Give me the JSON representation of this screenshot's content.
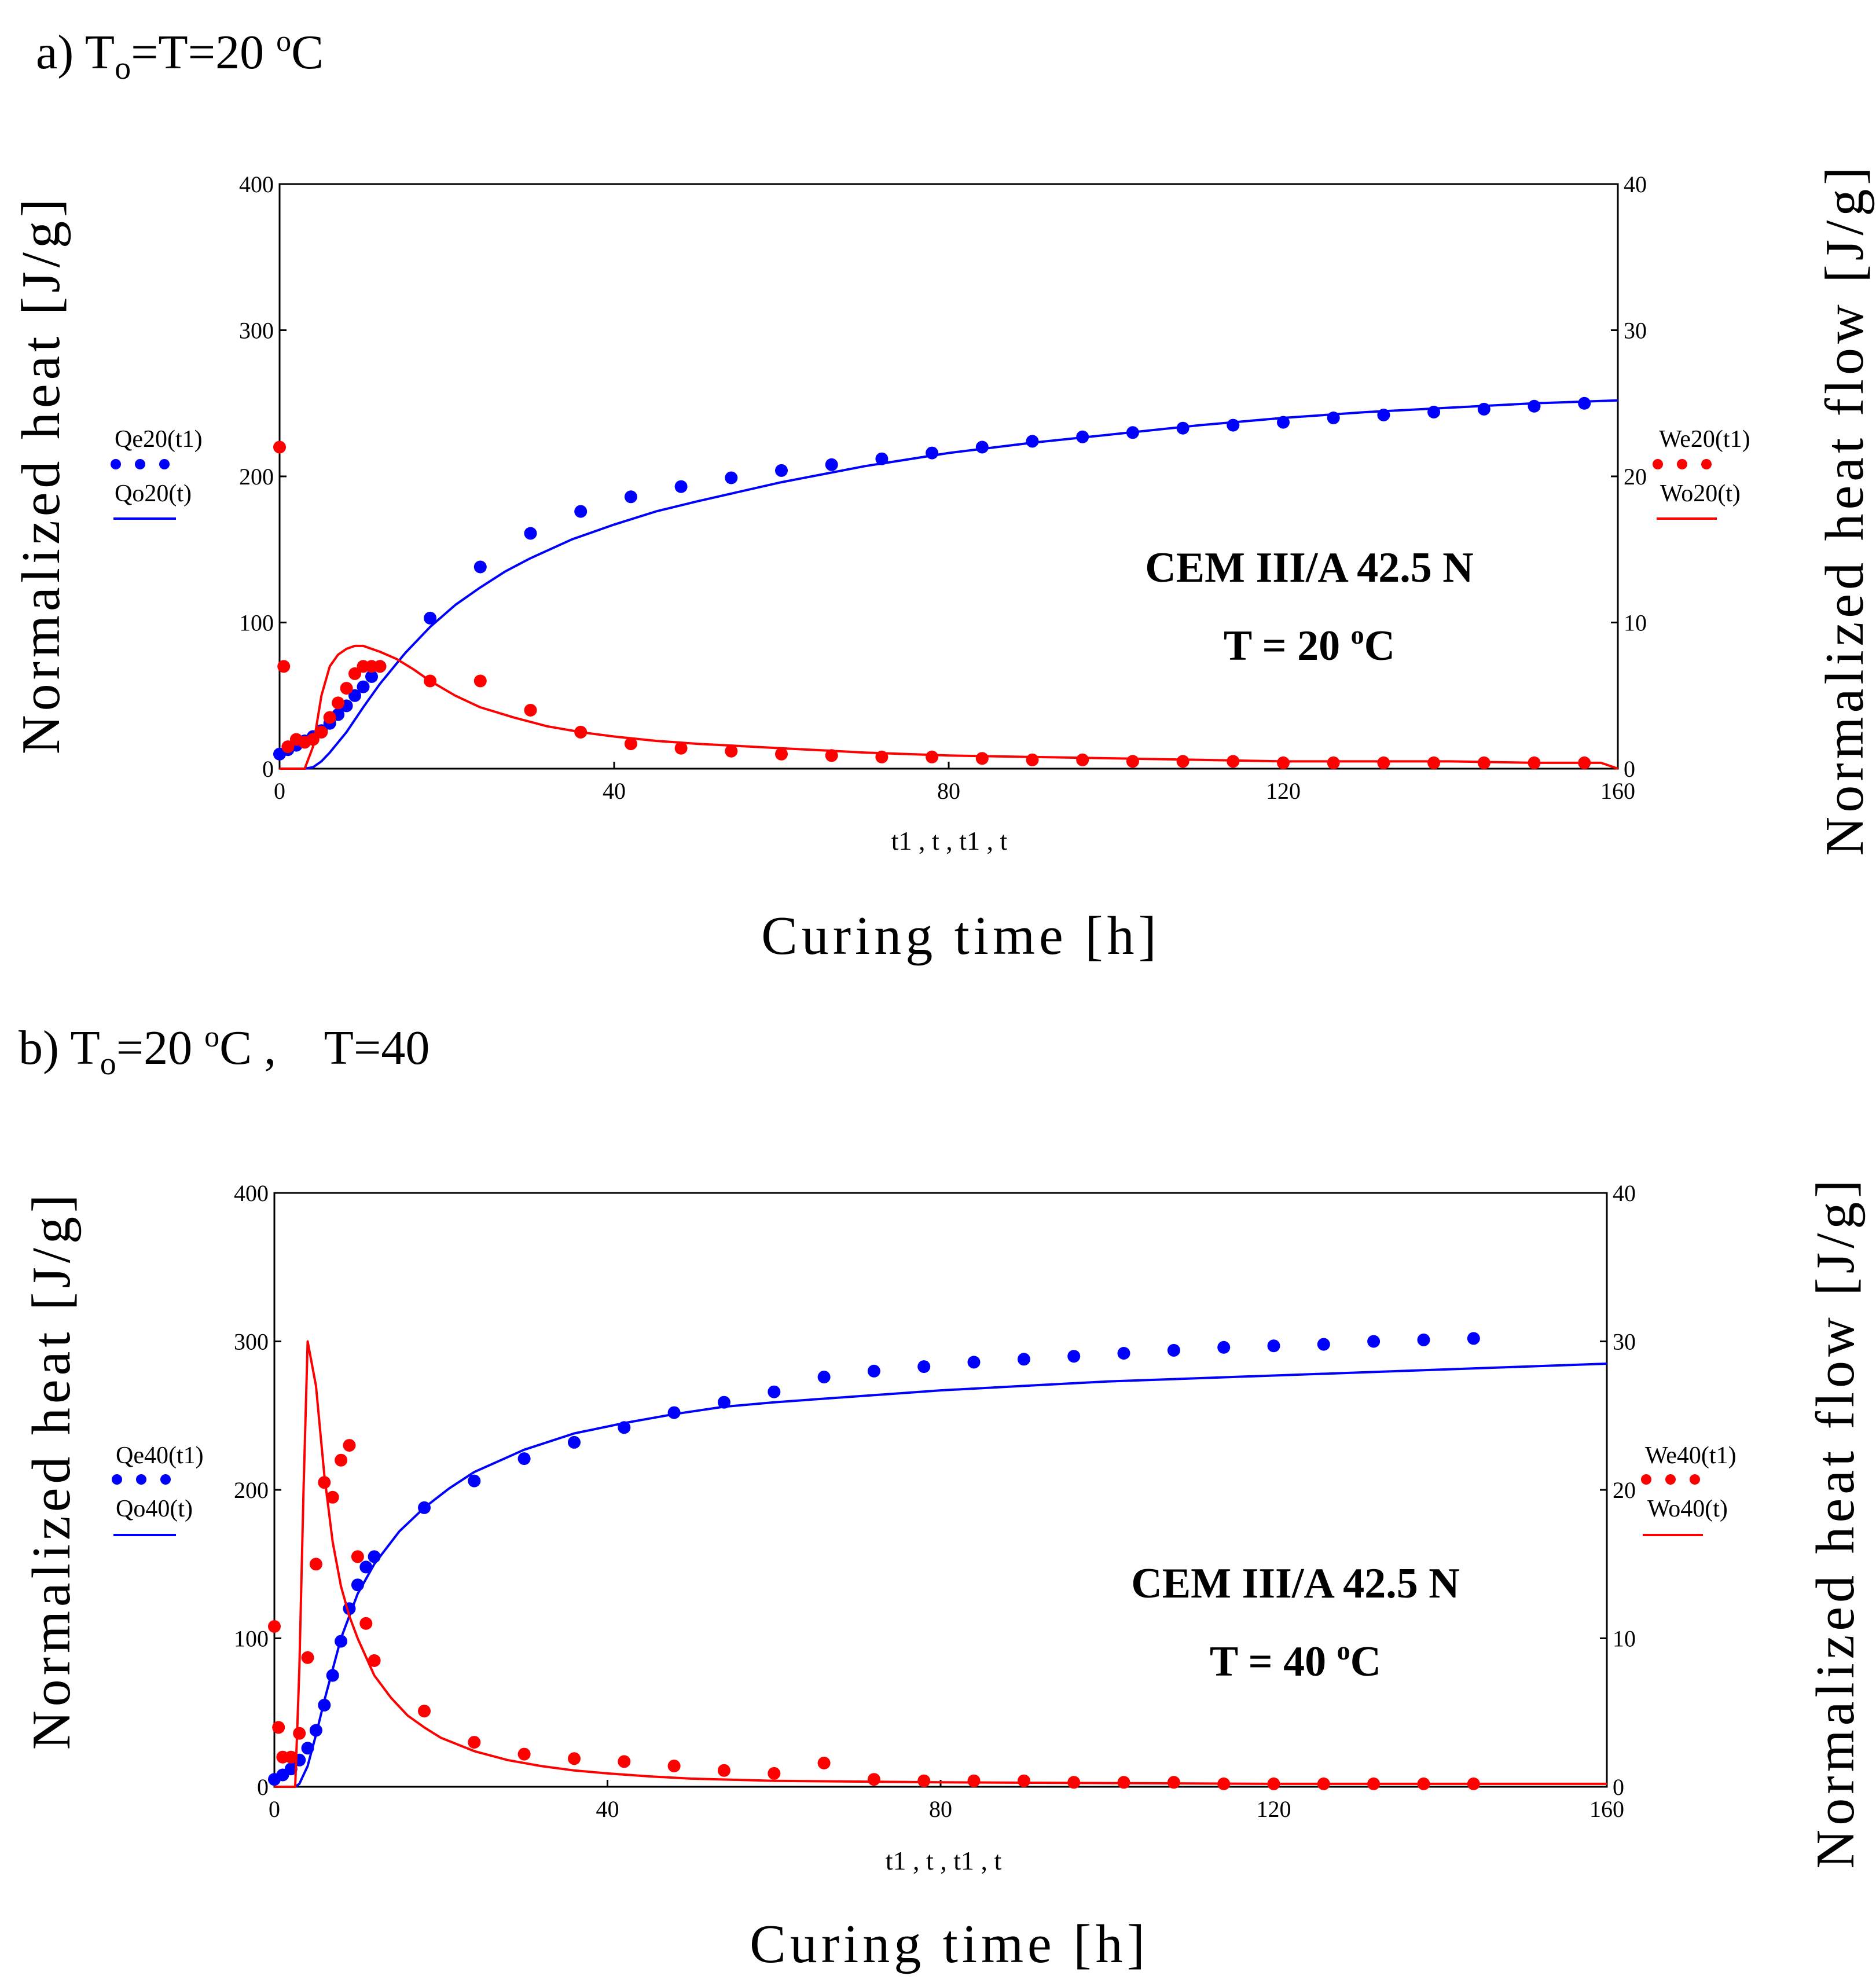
{
  "chart_data": [
    {
      "type": "scatter+line",
      "panel_title": {
        "prefix": "a) T",
        "sub": "o",
        "mid": "=T=20 ",
        "sup": "o",
        "suffix": "C"
      },
      "xlabel": "Curing time [h]",
      "x_variable_label": "t1 , t , t1 , t",
      "ylabel_left": "Normalized heat [J/g]",
      "ylabel_right": "Normalized heat flow [J/g]",
      "xlim": [
        0,
        160
      ],
      "ylim_left": [
        0,
        400
      ],
      "ylim_right": [
        0,
        40
      ],
      "x_ticks": [
        "0",
        "40",
        "80",
        "120",
        "160"
      ],
      "y_ticks_left": [
        "0",
        "100",
        "200",
        "300",
        "400"
      ],
      "y_ticks_right": [
        "0",
        "10",
        "20",
        "30",
        "40"
      ],
      "annotation": {
        "line1": "CEM III/A 42.5 N",
        "line2_prefix": "T = 20 ",
        "line2_sup": "o",
        "line2_suffix": "C"
      },
      "series": [
        {
          "name": "Qe20(t1)",
          "style": "dots",
          "axis": "left",
          "color": "#0000ff",
          "x": [
            0,
            1,
            2,
            3,
            4,
            5,
            6,
            7,
            8,
            9,
            10,
            11,
            12,
            18,
            24,
            30,
            36,
            42,
            48,
            54,
            60,
            66,
            72,
            78,
            84,
            90,
            96,
            102,
            108,
            114,
            120,
            126,
            132,
            138,
            144,
            150,
            156
          ],
          "y": [
            10,
            13,
            16,
            19,
            22,
            26,
            31,
            37,
            43,
            50,
            56,
            63,
            70,
            103,
            138,
            161,
            176,
            186,
            193,
            199,
            204,
            208,
            212,
            216,
            220,
            224,
            227,
            230,
            233,
            235,
            237,
            240,
            242,
            244,
            246,
            248,
            250
          ]
        },
        {
          "name": "Qo20(t)",
          "style": "line",
          "axis": "left",
          "color": "#0000ff",
          "x": [
            0,
            3,
            4,
            5,
            6,
            8,
            10,
            12,
            15,
            18,
            21,
            24,
            27,
            30,
            35,
            40,
            45,
            50,
            60,
            70,
            80,
            90,
            100,
            110,
            120,
            130,
            140,
            150,
            160
          ],
          "y": [
            0,
            0,
            1,
            5,
            11,
            25,
            42,
            58,
            79,
            97,
            112,
            124,
            135,
            144,
            157,
            167,
            176,
            183,
            196,
            207,
            216,
            223,
            229,
            235,
            240,
            244,
            247,
            250,
            252
          ]
        },
        {
          "name": "We20(t1)",
          "style": "dots",
          "axis": "right",
          "color": "#ff0000",
          "x": [
            0,
            0.5,
            1,
            2,
            3,
            4,
            5,
            6,
            7,
            8,
            9,
            10,
            11,
            12,
            18,
            24,
            30,
            36,
            42,
            48,
            54,
            60,
            66,
            72,
            78,
            84,
            90,
            96,
            102,
            108,
            114,
            120,
            126,
            132,
            138,
            144,
            150,
            156
          ],
          "y": [
            22,
            7,
            1.5,
            2,
            1.8,
            2,
            2.5,
            3.5,
            4.5,
            5.5,
            6.5,
            7,
            7,
            7,
            6,
            6,
            4,
            2.5,
            1.7,
            1.4,
            1.2,
            1,
            0.9,
            0.8,
            0.8,
            0.7,
            0.6,
            0.6,
            0.5,
            0.5,
            0.5,
            0.4,
            0.4,
            0.4,
            0.4,
            0.4,
            0.4,
            0.4
          ]
        },
        {
          "name": "Wo20(t)",
          "style": "line",
          "axis": "right",
          "color": "#ff0000",
          "x": [
            0,
            3,
            4,
            5,
            6,
            7,
            8,
            9,
            10,
            11,
            12,
            14,
            16,
            18,
            21,
            24,
            28,
            32,
            36,
            40,
            45,
            50,
            60,
            70,
            80,
            90,
            100,
            110,
            120,
            130,
            140,
            150,
            158,
            160
          ],
          "y": [
            0,
            0,
            1.5,
            5,
            7,
            7.8,
            8.2,
            8.4,
            8.4,
            8.2,
            8,
            7.5,
            6.8,
            6,
            5,
            4.2,
            3.5,
            2.9,
            2.5,
            2.2,
            1.9,
            1.7,
            1.4,
            1.1,
            0.9,
            0.8,
            0.7,
            0.6,
            0.5,
            0.5,
            0.5,
            0.4,
            0.4,
            0
          ]
        }
      ]
    },
    {
      "type": "scatter+line",
      "panel_title": {
        "prefix": "b) T",
        "sub": "o",
        "mid": "=20 ",
        "sup": "o",
        "suffix": "C ,    T=40"
      },
      "xlabel": "Curing time [h]",
      "x_variable_label": "t1 , t , t1 , t",
      "ylabel_left": "Normalized heat [J/g]",
      "ylabel_right": "Normalized heat flow [J/g]",
      "xlim": [
        0,
        160
      ],
      "ylim_left": [
        0,
        400
      ],
      "ylim_right": [
        0,
        40
      ],
      "x_ticks": [
        "0",
        "40",
        "80",
        "120",
        "160"
      ],
      "y_ticks_left": [
        "0",
        "100",
        "200",
        "300",
        "400"
      ],
      "y_ticks_right": [
        "0",
        "10",
        "20",
        "30",
        "40"
      ],
      "annotation": {
        "line1": "CEM III/A 42.5 N",
        "line2_prefix": "T = 40 ",
        "line2_sup": "o",
        "line2_suffix": "C"
      },
      "series": [
        {
          "name": "Qe40(t1)",
          "style": "dots",
          "axis": "left",
          "color": "#0000ff",
          "x": [
            0,
            1,
            2,
            3,
            4,
            5,
            6,
            7,
            8,
            9,
            10,
            11,
            12,
            18,
            24,
            30,
            36,
            42,
            48,
            54,
            60,
            66,
            72,
            78,
            84,
            90,
            96,
            102,
            108,
            114,
            120,
            126,
            132,
            138,
            144
          ],
          "y": [
            5,
            8,
            12,
            18,
            26,
            38,
            55,
            75,
            98,
            120,
            136,
            148,
            155,
            188,
            206,
            221,
            232,
            242,
            252,
            259,
            266,
            276,
            280,
            283,
            286,
            288,
            290,
            292,
            294,
            296,
            297,
            298,
            300,
            301,
            302
          ]
        },
        {
          "name": "Qo40(t)",
          "style": "line",
          "axis": "left",
          "color": "#0000ff",
          "x": [
            0,
            2.5,
            3,
            4,
            5,
            6,
            8,
            10,
            12,
            15,
            18,
            21,
            24,
            30,
            36,
            42,
            48,
            54,
            60,
            70,
            80,
            90,
            100,
            110,
            120,
            130,
            140,
            150,
            160
          ],
          "y": [
            0,
            0,
            2,
            14,
            35,
            58,
            100,
            130,
            150,
            172,
            188,
            201,
            212,
            227,
            238,
            245,
            251,
            256,
            259,
            263,
            267,
            270,
            273,
            275,
            277,
            279,
            281,
            283,
            285
          ]
        },
        {
          "name": "We40(t1)",
          "style": "dots",
          "axis": "right",
          "color": "#ff0000",
          "x": [
            0,
            0.5,
            1,
            2,
            3,
            4,
            5,
            6,
            7,
            8,
            9,
            10,
            11,
            12,
            18,
            24,
            30,
            36,
            42,
            48,
            54,
            60,
            66,
            72,
            78,
            84,
            90,
            96,
            102,
            108,
            114,
            120,
            126,
            132,
            138,
            144
          ],
          "y": [
            10.8,
            4,
            2,
            2,
            3.6,
            8.7,
            15,
            20.5,
            19.5,
            22,
            23,
            15.5,
            11,
            8.5,
            5.1,
            3,
            2.2,
            1.9,
            1.7,
            1.4,
            1.1,
            0.9,
            1.6,
            0.5,
            0.4,
            0.4,
            0.4,
            0.3,
            0.3,
            0.3,
            0.2,
            0.2,
            0.2,
            0.2,
            0.2,
            0.2
          ]
        },
        {
          "name": "Wo40(t)",
          "style": "line",
          "axis": "right",
          "color": "#ff0000",
          "x": [
            0,
            2.5,
            3,
            3.5,
            4,
            5,
            6,
            7,
            8,
            9,
            10,
            12,
            14,
            16,
            18,
            20,
            24,
            28,
            32,
            36,
            40,
            45,
            50,
            60,
            80,
            100,
            120,
            140,
            160
          ],
          "y": [
            0,
            0,
            8,
            20,
            30,
            27,
            21,
            16.5,
            13.5,
            11.5,
            10,
            7.5,
            6,
            4.8,
            4,
            3.3,
            2.4,
            1.8,
            1.4,
            1.1,
            0.9,
            0.7,
            0.55,
            0.4,
            0.3,
            0.25,
            0.2,
            0.2,
            0.2
          ]
        }
      ]
    }
  ]
}
